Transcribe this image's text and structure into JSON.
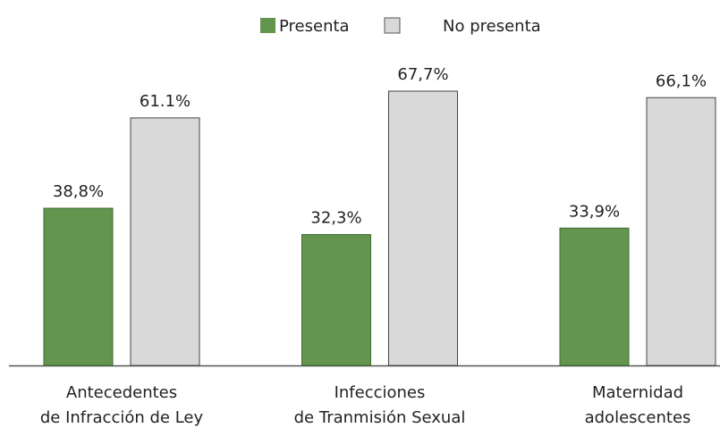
{
  "chart_data": {
    "type": "bar",
    "categories": [
      [
        "Antecedentes",
        "de Infracción de Ley"
      ],
      [
        "Infecciones",
        "de Tranmisión Sexual"
      ],
      [
        "Maternidad",
        "adolescentes"
      ]
    ],
    "series": [
      {
        "name": "Presenta",
        "color": "#64954f",
        "values": [
          38.8,
          32.3,
          33.9
        ],
        "value_labels": [
          "38,8%",
          "32,3%",
          "33,9%"
        ]
      },
      {
        "name": "No presenta",
        "color": "#d9d9d9",
        "values": [
          61.1,
          67.7,
          66.1
        ],
        "value_labels": [
          "61.1%",
          "67,7%",
          "66,1%"
        ]
      }
    ]
  }
}
